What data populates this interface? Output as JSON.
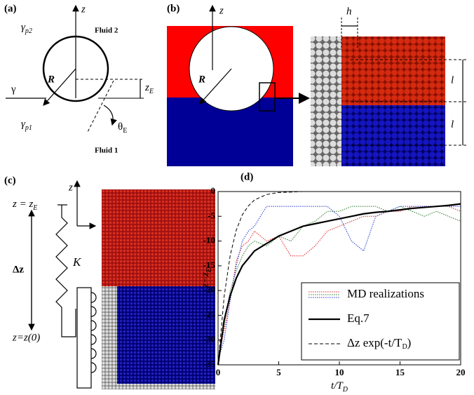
{
  "panel_a": {
    "label": "(a)",
    "axis": "z",
    "fluid_top": "Fluid 2",
    "gamma_p2": [
      "γ",
      "p2"
    ],
    "radius": "R",
    "z_e": [
      "z",
      "E"
    ],
    "gamma": "γ",
    "gamma_p1": [
      "γ",
      "p1"
    ],
    "theta_e": [
      "θ",
      "E"
    ],
    "fluid_bottom": "Fluid 1"
  },
  "panel_b": {
    "label": "(b)",
    "axis": "z",
    "radius": "R",
    "h": "h",
    "l_top": "l",
    "l_bottom": "l"
  },
  "panel_c": {
    "label": "(c)",
    "axis": "z",
    "top": [
      "z = z",
      "E"
    ],
    "delta": "Δz",
    "spring": "K",
    "bottom": "z=z(0)"
  },
  "chart_data": {
    "type": "line",
    "title": "(d)",
    "xlabel": [
      "t/T",
      "D"
    ],
    "ylabel": [
      "z−z",
      "E"
    ],
    "x": [
      0,
      0.5,
      1,
      1.5,
      2,
      2.5,
      3,
      4,
      5,
      6,
      7,
      8,
      9,
      10,
      11,
      12,
      13,
      14,
      15,
      16,
      17,
      18,
      19,
      20
    ],
    "xlim": [
      0,
      20
    ],
    "xticks": [
      0,
      5,
      10,
      15,
      20
    ],
    "ylim": [
      -35,
      0
    ],
    "yticks": [
      0,
      -5,
      -10,
      -15,
      -20,
      -25,
      -30,
      -35
    ],
    "series": [
      {
        "name": "MD realizations",
        "color": "#e02020",
        "line_style": "dotted",
        "values": [
          -34,
          -28,
          -22,
          -14,
          -11,
          -10,
          -8,
          -10,
          -9,
          -13,
          -13,
          -11,
          -8,
          -7,
          -6,
          -5,
          -5,
          -4,
          -4,
          -3,
          -3,
          -3,
          -3,
          -4
        ]
      },
      {
        "color": "#2a7a2a",
        "line_style": "dotted",
        "values": [
          -34,
          -27,
          -20,
          -16,
          -13,
          -11,
          -10,
          -11,
          -9,
          -10,
          -7,
          -6,
          -4,
          -4,
          -3,
          -3,
          -3,
          -4,
          -3,
          -4,
          -5,
          -4,
          -5,
          -6
        ]
      },
      {
        "color": "#2030d0",
        "line_style": "dotted",
        "values": [
          -34,
          -30,
          -22,
          -15,
          -10,
          -8,
          -7,
          -3,
          -3,
          -3,
          -3,
          -3,
          -3,
          -5,
          -10,
          -12,
          -5,
          -4,
          -3,
          -3,
          -3,
          -3,
          -3,
          -3
        ]
      },
      {
        "name": "Eq.7",
        "color": "#000000",
        "line_style": "solid",
        "values": [
          -35,
          -26,
          -21,
          -17.5,
          -15,
          -13.5,
          -12,
          -10.5,
          -9,
          -8,
          -7,
          -6.5,
          -6,
          -5.5,
          -5,
          -4.5,
          -4.2,
          -4,
          -3.7,
          -3.4,
          -3.2,
          -3,
          -2.8,
          -2.5
        ]
      },
      {
        "name": [
          "Δz exp(-t/T",
          "D",
          ")"
        ],
        "color": "#000000",
        "line_style": "dashed",
        "values": [
          -35,
          -21.2,
          -12.9,
          -7.8,
          -4.7,
          -2.9,
          -1.7,
          -0.6,
          -0.2,
          -0.1,
          0,
          0,
          0,
          0,
          0,
          0,
          0,
          0,
          0,
          0,
          0,
          0,
          0,
          0
        ]
      }
    ]
  }
}
